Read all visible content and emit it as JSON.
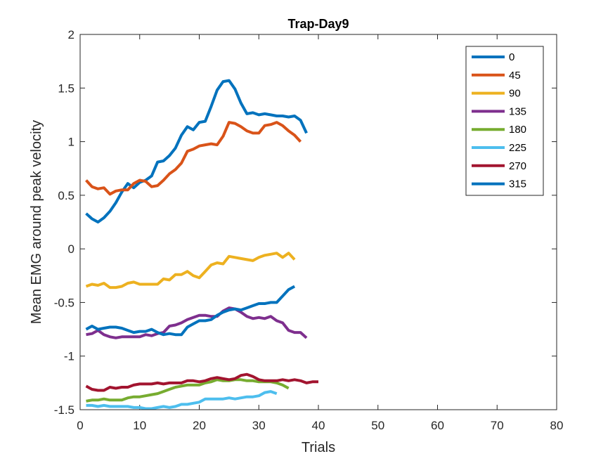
{
  "chart_data": {
    "type": "line",
    "title": "Trap-Day9",
    "xlabel": "Trials",
    "ylabel": "Mean EMG around peak velocity",
    "xlim": [
      0,
      80
    ],
    "ylim": [
      -1.5,
      2
    ],
    "xticks": [
      0,
      10,
      20,
      30,
      40,
      50,
      60,
      70,
      80
    ],
    "yticks": [
      -1.5,
      -1,
      -0.5,
      0,
      0.5,
      1,
      1.5,
      2
    ],
    "legend_position": "top-right",
    "grid": false,
    "series": [
      {
        "name": "0",
        "color": "#0072BD",
        "x": [
          1,
          2,
          3,
          4,
          5,
          6,
          7,
          8,
          9,
          10,
          11,
          12,
          13,
          14,
          15,
          16,
          17,
          18,
          19,
          20,
          21,
          22,
          23,
          24,
          25,
          26,
          27,
          28,
          29,
          30,
          31,
          32,
          33,
          34,
          35,
          36,
          37,
          38
        ],
        "y": [
          0.33,
          0.28,
          0.25,
          0.29,
          0.35,
          0.43,
          0.53,
          0.61,
          0.57,
          0.62,
          0.64,
          0.68,
          0.81,
          0.82,
          0.87,
          0.94,
          1.06,
          1.14,
          1.11,
          1.18,
          1.19,
          1.33,
          1.48,
          1.56,
          1.57,
          1.49,
          1.36,
          1.26,
          1.27,
          1.25,
          1.26,
          1.25,
          1.24,
          1.24,
          1.23,
          1.24,
          1.2,
          1.08
        ]
      },
      {
        "name": "45",
        "color": "#D95319",
        "x": [
          1,
          2,
          3,
          4,
          5,
          6,
          7,
          8,
          9,
          10,
          11,
          12,
          13,
          14,
          15,
          16,
          17,
          18,
          19,
          20,
          21,
          22,
          23,
          24,
          25,
          26,
          27,
          28,
          29,
          30,
          31,
          32,
          33,
          34,
          35,
          36,
          37
        ],
        "y": [
          0.64,
          0.58,
          0.56,
          0.57,
          0.51,
          0.54,
          0.55,
          0.55,
          0.61,
          0.64,
          0.63,
          0.58,
          0.59,
          0.64,
          0.7,
          0.74,
          0.8,
          0.91,
          0.93,
          0.96,
          0.97,
          0.98,
          0.97,
          1.05,
          1.18,
          1.17,
          1.14,
          1.1,
          1.08,
          1.08,
          1.15,
          1.16,
          1.18,
          1.15,
          1.1,
          1.06,
          1.0
        ]
      },
      {
        "name": "90",
        "color": "#EDB120",
        "x": [
          1,
          2,
          3,
          4,
          5,
          6,
          7,
          8,
          9,
          10,
          11,
          12,
          13,
          14,
          15,
          16,
          17,
          18,
          19,
          20,
          21,
          22,
          23,
          24,
          25,
          26,
          27,
          28,
          29,
          30,
          31,
          32,
          33,
          34,
          35,
          36
        ],
        "y": [
          -0.35,
          -0.33,
          -0.34,
          -0.32,
          -0.36,
          -0.36,
          -0.35,
          -0.32,
          -0.31,
          -0.33,
          -0.33,
          -0.33,
          -0.33,
          -0.28,
          -0.29,
          -0.24,
          -0.24,
          -0.21,
          -0.25,
          -0.27,
          -0.21,
          -0.15,
          -0.13,
          -0.14,
          -0.07,
          -0.08,
          -0.09,
          -0.1,
          -0.11,
          -0.08,
          -0.06,
          -0.05,
          -0.04,
          -0.08,
          -0.04,
          -0.1
        ]
      },
      {
        "name": "135",
        "color": "#7E2F8E",
        "x": [
          1,
          2,
          3,
          4,
          5,
          6,
          7,
          8,
          9,
          10,
          11,
          12,
          13,
          14,
          15,
          16,
          17,
          18,
          19,
          20,
          21,
          22,
          23,
          24,
          25,
          26,
          27,
          28,
          29,
          30,
          31,
          32,
          33,
          34,
          35,
          36,
          37,
          38
        ],
        "y": [
          -0.8,
          -0.79,
          -0.76,
          -0.8,
          -0.82,
          -0.83,
          -0.82,
          -0.82,
          -0.82,
          -0.82,
          -0.8,
          -0.81,
          -0.79,
          -0.78,
          -0.72,
          -0.71,
          -0.69,
          -0.66,
          -0.64,
          -0.62,
          -0.62,
          -0.63,
          -0.63,
          -0.58,
          -0.55,
          -0.56,
          -0.59,
          -0.63,
          -0.65,
          -0.64,
          -0.65,
          -0.63,
          -0.67,
          -0.69,
          -0.76,
          -0.78,
          -0.78,
          -0.83
        ]
      },
      {
        "name": "180",
        "color": "#77AC30",
        "x": [
          1,
          2,
          3,
          4,
          5,
          6,
          7,
          8,
          9,
          10,
          11,
          12,
          13,
          14,
          15,
          16,
          17,
          18,
          19,
          20,
          21,
          22,
          23,
          24,
          25,
          26,
          27,
          28,
          29,
          30,
          31,
          32,
          33,
          34,
          35
        ],
        "y": [
          -1.42,
          -1.41,
          -1.41,
          -1.4,
          -1.41,
          -1.41,
          -1.41,
          -1.39,
          -1.38,
          -1.38,
          -1.37,
          -1.36,
          -1.35,
          -1.33,
          -1.31,
          -1.29,
          -1.28,
          -1.27,
          -1.27,
          -1.27,
          -1.25,
          -1.24,
          -1.22,
          -1.23,
          -1.23,
          -1.22,
          -1.22,
          -1.23,
          -1.23,
          -1.24,
          -1.24,
          -1.24,
          -1.25,
          -1.27,
          -1.3
        ]
      },
      {
        "name": "225",
        "color": "#4DBEEE",
        "x": [
          1,
          2,
          3,
          4,
          5,
          6,
          7,
          8,
          9,
          10,
          11,
          12,
          13,
          14,
          15,
          16,
          17,
          18,
          19,
          20,
          21,
          22,
          23,
          24,
          25,
          26,
          27,
          28,
          29,
          30,
          31,
          32,
          33
        ],
        "y": [
          -1.46,
          -1.46,
          -1.47,
          -1.46,
          -1.47,
          -1.47,
          -1.47,
          -1.47,
          -1.48,
          -1.48,
          -1.49,
          -1.49,
          -1.48,
          -1.47,
          -1.48,
          -1.47,
          -1.45,
          -1.45,
          -1.44,
          -1.43,
          -1.4,
          -1.4,
          -1.4,
          -1.4,
          -1.39,
          -1.4,
          -1.39,
          -1.38,
          -1.38,
          -1.37,
          -1.34,
          -1.33,
          -1.35
        ]
      },
      {
        "name": "270",
        "color": "#A2142F",
        "x": [
          1,
          2,
          3,
          4,
          5,
          6,
          7,
          8,
          9,
          10,
          11,
          12,
          13,
          14,
          15,
          16,
          17,
          18,
          19,
          20,
          21,
          22,
          23,
          24,
          25,
          26,
          27,
          28,
          29,
          30,
          31,
          32,
          33,
          34,
          35,
          36,
          37,
          38,
          39,
          40
        ],
        "y": [
          -1.28,
          -1.31,
          -1.32,
          -1.32,
          -1.29,
          -1.3,
          -1.29,
          -1.29,
          -1.27,
          -1.26,
          -1.26,
          -1.26,
          -1.25,
          -1.26,
          -1.25,
          -1.25,
          -1.25,
          -1.23,
          -1.23,
          -1.24,
          -1.23,
          -1.21,
          -1.2,
          -1.21,
          -1.22,
          -1.21,
          -1.18,
          -1.17,
          -1.19,
          -1.22,
          -1.23,
          -1.23,
          -1.23,
          -1.22,
          -1.23,
          -1.22,
          -1.23,
          -1.25,
          -1.24,
          -1.24
        ]
      },
      {
        "name": "315",
        "color": "#0072BD",
        "x": [
          1,
          2,
          3,
          4,
          5,
          6,
          7,
          8,
          9,
          10,
          11,
          12,
          13,
          14,
          15,
          16,
          17,
          18,
          19,
          20,
          21,
          22,
          23,
          24,
          25,
          26,
          27,
          28,
          29,
          30,
          31,
          32,
          33,
          34,
          35,
          36
        ],
        "y": [
          -0.75,
          -0.72,
          -0.75,
          -0.74,
          -0.73,
          -0.73,
          -0.74,
          -0.76,
          -0.78,
          -0.77,
          -0.77,
          -0.75,
          -0.78,
          -0.8,
          -0.79,
          -0.8,
          -0.8,
          -0.73,
          -0.7,
          -0.67,
          -0.67,
          -0.66,
          -0.62,
          -0.59,
          -0.57,
          -0.56,
          -0.57,
          -0.55,
          -0.53,
          -0.51,
          -0.51,
          -0.5,
          -0.5,
          -0.44,
          -0.38,
          -0.35
        ]
      }
    ]
  }
}
